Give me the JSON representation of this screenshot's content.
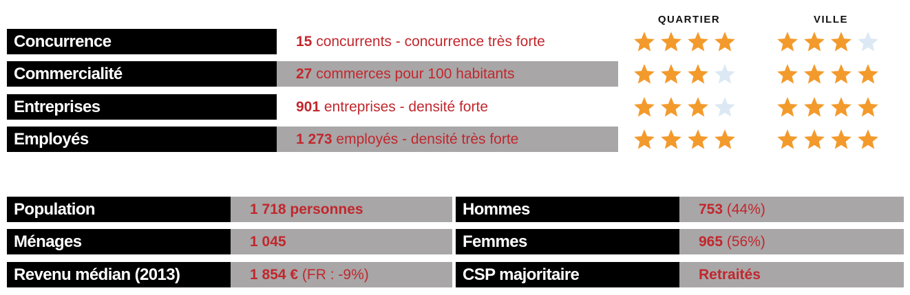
{
  "headers": {
    "quartier": "QUARTIER",
    "ville": "VILLE"
  },
  "colors": {
    "accent": "#c1272d",
    "star_on": "#f39a2c",
    "star_off": "#dce9f4",
    "bar_gray": "#a8a6a7",
    "label_bg": "#000000"
  },
  "indicators": [
    {
      "label": "Concurrence",
      "value": "15",
      "text": " concurrents - concurrence très forte",
      "quartier": 4,
      "ville": 3
    },
    {
      "label": "Commercialité",
      "value": "27",
      "text": " commerces pour 100 habitants",
      "quartier": 3,
      "ville": 4
    },
    {
      "label": "Entreprises",
      "value": "901",
      "text": " entreprises - densité forte",
      "quartier": 3,
      "ville": 4
    },
    {
      "label": "Employés",
      "value": "1 273",
      "text": " employés - densité très forte",
      "quartier": 4,
      "ville": 4
    }
  ],
  "stats": [
    {
      "label": "Population",
      "value": "1 718 personnes",
      "extra": ""
    },
    {
      "label": "Ménages",
      "value": "1 045",
      "extra": ""
    },
    {
      "label": "Revenu médian (2013)",
      "value": "1 854 €",
      "extra": " (FR : -9%)"
    },
    {
      "label": "Hommes",
      "value": "753",
      "extra": " (44%)"
    },
    {
      "label": "Femmes",
      "value": "965",
      "extra": " (56%)"
    },
    {
      "label": "CSP majoritaire",
      "value": "Retraités",
      "extra": ""
    }
  ]
}
